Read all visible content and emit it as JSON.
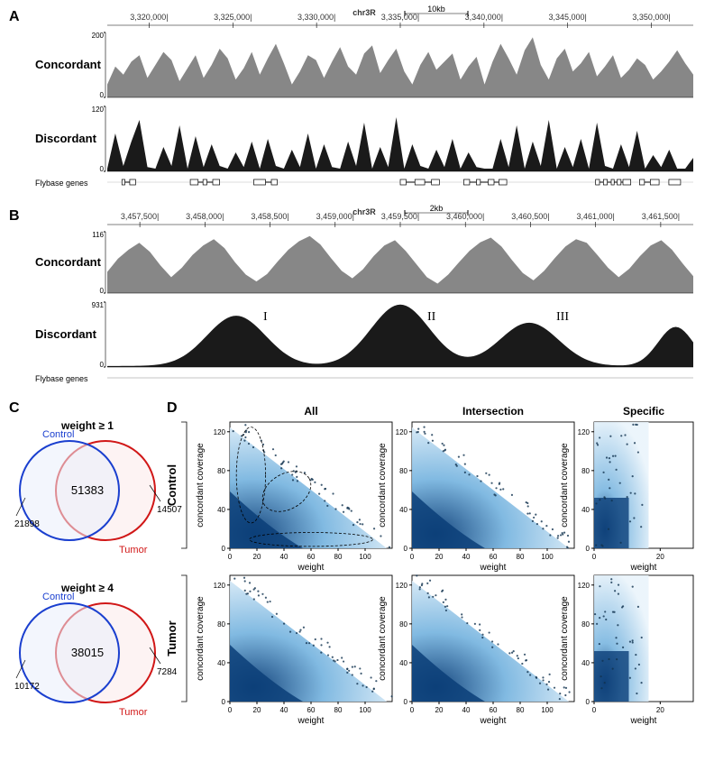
{
  "panelA": {
    "label": "A",
    "chrom": "chr3R",
    "scale_text": "10kb",
    "coords": [
      "3,320,000",
      "3,325,000",
      "3,330,000",
      "3,335,000",
      "3,340,000",
      "3,345,000",
      "3,350,000"
    ],
    "track1": {
      "name": "Concordant",
      "ymax": 200,
      "ymin": 0,
      "color": "#878787",
      "values": [
        40,
        95,
        70,
        110,
        130,
        60,
        100,
        140,
        115,
        50,
        90,
        130,
        60,
        100,
        150,
        120,
        55,
        90,
        140,
        70,
        120,
        165,
        105,
        40,
        80,
        130,
        115,
        60,
        110,
        155,
        95,
        70,
        135,
        160,
        75,
        115,
        150,
        80,
        40,
        100,
        140,
        85,
        110,
        135,
        55,
        95,
        125,
        40,
        110,
        165,
        120,
        70,
        145,
        185,
        100,
        55,
        120,
        150,
        80,
        105,
        140,
        65,
        95,
        130,
        60,
        85,
        120,
        100,
        55,
        80,
        110,
        145,
        105,
        70
      ]
    },
    "track2": {
      "name": "Discordant",
      "ymax": 120,
      "ymin": 0,
      "color": "#1a1a1a",
      "values": [
        5,
        70,
        10,
        55,
        95,
        8,
        5,
        45,
        10,
        85,
        5,
        65,
        8,
        50,
        10,
        5,
        35,
        8,
        55,
        5,
        60,
        10,
        5,
        40,
        8,
        70,
        5,
        50,
        8,
        5,
        55,
        10,
        90,
        5,
        45,
        8,
        100,
        5,
        50,
        10,
        5,
        40,
        8,
        60,
        5,
        35,
        8,
        5,
        5,
        60,
        8,
        85,
        5,
        55,
        10,
        95,
        5,
        45,
        8,
        60,
        5,
        90,
        10,
        5,
        50,
        8,
        75,
        5,
        30,
        8,
        40,
        5,
        5,
        25
      ]
    },
    "genes_label": "Flybase genes",
    "genes": [
      {
        "x": 15,
        "w": 14,
        "exons": [
          [
            15,
            3
          ],
          [
            23,
            6
          ]
        ]
      },
      {
        "x": 85,
        "w": 30,
        "exons": [
          [
            85,
            8
          ],
          [
            98,
            4
          ],
          [
            108,
            7
          ]
        ]
      },
      {
        "x": 150,
        "w": 24,
        "exons": [
          [
            150,
            12
          ],
          [
            168,
            6
          ]
        ]
      },
      {
        "x": 300,
        "w": 40,
        "exons": [
          [
            300,
            6
          ],
          [
            315,
            10
          ],
          [
            332,
            8
          ]
        ]
      },
      {
        "x": 365,
        "w": 44,
        "exons": [
          [
            365,
            6
          ],
          [
            378,
            4
          ],
          [
            390,
            6
          ],
          [
            401,
            8
          ]
        ]
      },
      {
        "x": 500,
        "w": 36,
        "exons": [
          [
            500,
            4
          ],
          [
            508,
            4
          ],
          [
            516,
            3
          ],
          [
            522,
            4
          ],
          [
            528,
            8
          ]
        ]
      },
      {
        "x": 545,
        "w": 20,
        "exons": [
          [
            545,
            5
          ],
          [
            556,
            9
          ]
        ]
      },
      {
        "x": 575,
        "w": 12,
        "exons": [
          [
            575,
            12
          ]
        ]
      }
    ]
  },
  "panelB": {
    "label": "B",
    "chrom": "chr3R",
    "scale_text": "2kb",
    "coords": [
      "3,457,500",
      "3,458,000",
      "3,458,500",
      "3,459,000",
      "3,459,500",
      "3,460,000",
      "3,460,500",
      "3,461,000",
      "3,461,500"
    ],
    "track1": {
      "name": "Concordant",
      "ymax": 116,
      "ymin": 0,
      "color": "#878787",
      "values": [
        40,
        65,
        82,
        95,
        78,
        52,
        30,
        48,
        72,
        90,
        102,
        85,
        58,
        35,
        22,
        36,
        60,
        82,
        98,
        108,
        92,
        66,
        42,
        28,
        45,
        70,
        90,
        100,
        80,
        55,
        30,
        18,
        35,
        58,
        80,
        96,
        105,
        88,
        62,
        38,
        24,
        42,
        66,
        88,
        102,
        95,
        72,
        48,
        30,
        46,
        70,
        90,
        100,
        82,
        56,
        32
      ]
    },
    "track2": {
      "name": "Discordant",
      "ymax": 931,
      "ymin": 0,
      "color": "#1a1a1a",
      "bumps": [
        "I",
        "II",
        "III"
      ],
      "bump_centers": [
        0.22,
        0.5,
        0.72
      ],
      "bump_heights": [
        720,
        880,
        620
      ],
      "bump_width": 0.05,
      "end_bump_center": 0.97,
      "end_bump_height": 560
    },
    "genes_label": "Flybase genes"
  },
  "panelC": {
    "label": "C",
    "venn1": {
      "title": "weight ≥ 1",
      "leftLabel": "Control",
      "leftColor": "#1a3fcf",
      "rightLabel": "Tumor",
      "rightColor": "#d11717",
      "leftOnly": "21898",
      "intersection": "51383",
      "rightOnly": "14507"
    },
    "venn2": {
      "title": "weight ≥ 4",
      "leftLabel": "Control",
      "leftColor": "#1a3fcf",
      "rightLabel": "Tumor",
      "rightColor": "#d11717",
      "leftOnly": "10172",
      "intersection": "38015",
      "rightOnly": "7284"
    }
  },
  "panelD": {
    "label": "D",
    "rows": [
      "Control",
      "Tumor"
    ],
    "cols": [
      "All",
      "Intersection",
      "Specific"
    ],
    "xlabel": "weight",
    "ylabel": "concordant coverage",
    "xmax_wide": 120,
    "xticks_wide": [
      0,
      20,
      40,
      60,
      80,
      100
    ],
    "xmax_narrow": 30,
    "xticks_narrow": [
      0,
      20
    ],
    "ymax": 130,
    "yticks": [
      0,
      40,
      80,
      120
    ],
    "gradient_light": "#eaf4fb",
    "gradient_mid": "#7ab6e0",
    "gradient_dark": "#0b3e78",
    "point_color": "#10324f"
  }
}
